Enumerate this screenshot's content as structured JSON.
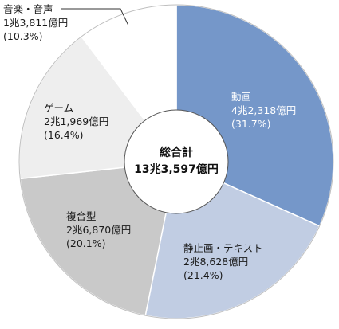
{
  "chart_data": {
    "type": "pie",
    "style": "donut-with-center-circle",
    "title": "",
    "center": {
      "label": "総合計",
      "value": "13兆3,597億円"
    },
    "slices": [
      {
        "name": "動画",
        "value_label": "4兆2,318億円",
        "percent": 31.7,
        "percent_label": "(31.7%)",
        "color": "#7597c9"
      },
      {
        "name": "静止画・テキスト",
        "value_label": "2兆8,628億円",
        "percent": 21.4,
        "percent_label": "(21.4%)",
        "color": "#c1cde3"
      },
      {
        "name": "複合型",
        "value_label": "2兆6,870億円",
        "percent": 20.1,
        "percent_label": "(20.1%)",
        "color": "#c9c9c9"
      },
      {
        "name": "ゲーム",
        "value_label": "2兆1,969億円",
        "percent": 16.4,
        "percent_label": "(16.4%)",
        "color": "#eeeeee"
      },
      {
        "name": "音楽・音声",
        "value_label": "1兆3,811億円",
        "percent": 10.3,
        "percent_label": "(10.3%)",
        "color": "#ffffff"
      }
    ]
  }
}
